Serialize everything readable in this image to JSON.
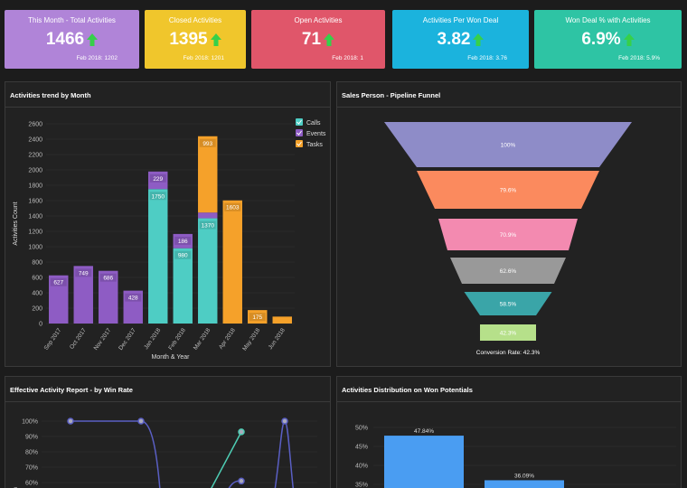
{
  "kpis": [
    {
      "title": "This Month - Total Activities",
      "value": "1466",
      "prev": "Feb 2018: 1202",
      "color": "#b084d8"
    },
    {
      "title": "Closed Activities",
      "value": "1395",
      "prev": "Feb 2018: 1201",
      "color": "#f0c62c"
    },
    {
      "title": "Open Activities",
      "value": "71",
      "prev": "Feb 2018: 1",
      "color": "#e0566a"
    },
    {
      "title": "Activities Per Won Deal",
      "value": "3.82",
      "prev": "Feb 2018: 3.76",
      "color": "#1bb3dd"
    },
    {
      "title": "Won Deal % with Activities",
      "value": "6.9%",
      "prev": "Feb 2018: 5.9%",
      "color": "#2ec4a4"
    }
  ],
  "panels": {
    "trend": "Activities trend by Month",
    "funnel": "Sales Person - Pipeline Funnel",
    "winrate": "Effective Activity Report - by Win Rate",
    "distribution": "Activities Distribution on Won Potentials"
  },
  "chart_data": [
    {
      "type": "bar",
      "title": "Activities trend by Month",
      "xlabel": "Month & Year",
      "ylabel": "Activities Count",
      "ylim": [
        0,
        2600
      ],
      "yticks": [
        0,
        200,
        400,
        600,
        800,
        1000,
        1200,
        1400,
        1600,
        1800,
        2000,
        2200,
        2400,
        2600
      ],
      "categories": [
        "Sep 2017",
        "Oct 2017",
        "Nov 2017",
        "Dec 2017",
        "Jan 2018",
        "Feb 2018",
        "Mar 2018",
        "Apr 2018",
        "May 2018",
        "Jun 2018"
      ],
      "stacked": true,
      "series": [
        {
          "name": "Calls",
          "color": "#4ecdc4",
          "values": [
            0,
            0,
            0,
            0,
            1750,
            980,
            1370,
            0,
            0,
            0
          ],
          "labels": [
            "",
            "",
            "",
            "",
            "1750",
            "980",
            "1370",
            "",
            "",
            ""
          ]
        },
        {
          "name": "Events",
          "color": "#8e5cc4",
          "values": [
            627,
            749,
            686,
            428,
            229,
            186,
            75,
            0,
            0,
            0
          ],
          "labels": [
            "627",
            "749",
            "686",
            "428",
            "229",
            "186",
            "",
            "",
            "",
            ""
          ]
        },
        {
          "name": "Tasks",
          "color": "#f5a12a",
          "values": [
            0,
            0,
            0,
            0,
            0,
            0,
            993,
            1603,
            175,
            90
          ],
          "labels": [
            "",
            "",
            "",
            "",
            "",
            "",
            "993",
            "1603",
            "175",
            ""
          ]
        }
      ],
      "legend": "top-right"
    },
    {
      "type": "funnel",
      "title": "Sales Person - Pipeline Funnel",
      "stages": [
        {
          "label": "100%",
          "value": 100,
          "color": "#8e8cc8"
        },
        {
          "label": "79.6%",
          "value": 79.6,
          "color": "#fb8a5e"
        },
        {
          "label": "70.9%",
          "value": 70.9,
          "color": "#f38ab0"
        },
        {
          "label": "62.6%",
          "value": 62.6,
          "color": "#999999"
        },
        {
          "label": "58.5%",
          "value": 58.5,
          "color": "#3aa5a8"
        },
        {
          "label": "42.3%",
          "value": 42.3,
          "color": "#b6e08a"
        }
      ],
      "footer": "Conversion Rate: 42.3%"
    },
    {
      "type": "line",
      "title": "Effective Activity Report - by Win Rate",
      "yticks": [
        "100%",
        "90%",
        "80%",
        "70%",
        "60%"
      ],
      "series": [
        {
          "name": "",
          "color": "#5a5fc4",
          "values": [
            100,
            100
          ]
        },
        {
          "name": "",
          "color": "#4ecdb4",
          "values": [
            93
          ]
        },
        {
          "name": "",
          "color": "#5a5fc4",
          "values": [
            61,
            100
          ]
        }
      ]
    },
    {
      "type": "bar",
      "title": "Activities Distribution on Won Potentials",
      "yticks": [
        "50%",
        "45%",
        "40%",
        "35%"
      ],
      "values": [
        47.84,
        36.09
      ],
      "labels": [
        "47.84%",
        "36.09%"
      ],
      "color": "#4a9df2"
    }
  ]
}
